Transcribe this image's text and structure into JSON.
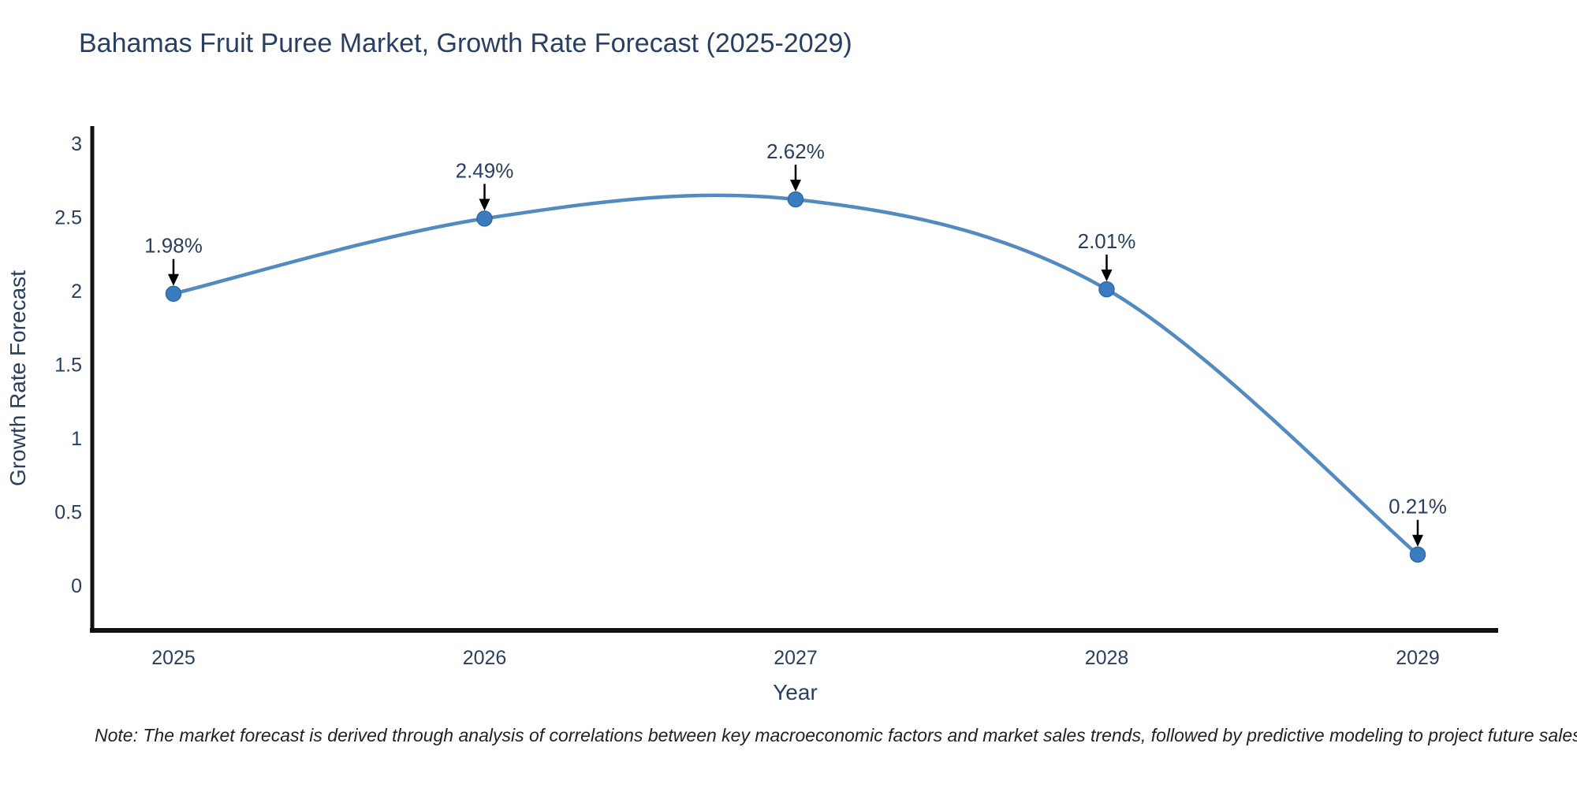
{
  "title": "Bahamas Fruit Puree Market, Growth Rate Forecast (2025-2029)",
  "note": "Note: The market forecast is derived through analysis of correlations between key macroeconomic factors and market sales trends, followed by predictive modeling to project future sales",
  "chart_data": {
    "type": "line",
    "title": "Bahamas Fruit Puree Market, Growth Rate Forecast (2025-2029)",
    "x": [
      2025,
      2026,
      2027,
      2028,
      2029
    ],
    "values": [
      1.98,
      2.49,
      2.62,
      2.01,
      0.21
    ],
    "point_labels": [
      "1.98%",
      "2.49%",
      "2.62%",
      "2.01%",
      "0.21%"
    ],
    "xlabel": "Year",
    "ylabel": "Growth Rate Forecast",
    "yticks": [
      0,
      0.5,
      1,
      1.5,
      2,
      2.5,
      3
    ],
    "ytick_labels": [
      "0",
      "0.5",
      "1",
      "1.5",
      "2",
      "2.5",
      "3"
    ],
    "xtick_labels": [
      "2025",
      "2026",
      "2027",
      "2028",
      "2029"
    ],
    "ylim": [
      -0.3,
      3.12
    ],
    "xlim": [
      2024.74,
      2029.26
    ],
    "grid": false,
    "legend_position": "none",
    "line_shape": "spline",
    "marker_style": "circle-with-down-arrow-annotation",
    "colors": {
      "line": "#528ac1",
      "marker_fill": "#3a7cbd",
      "marker_edge": "#2f6aa8",
      "axis_line": "#111111",
      "tick_text": "#2a3f5f",
      "axis_title_text": "#2a3f5f",
      "annotation_text": "#2a3f5f",
      "annotation_arrow": "#000000",
      "note_text": "#222222",
      "background": "#ffffff"
    }
  }
}
